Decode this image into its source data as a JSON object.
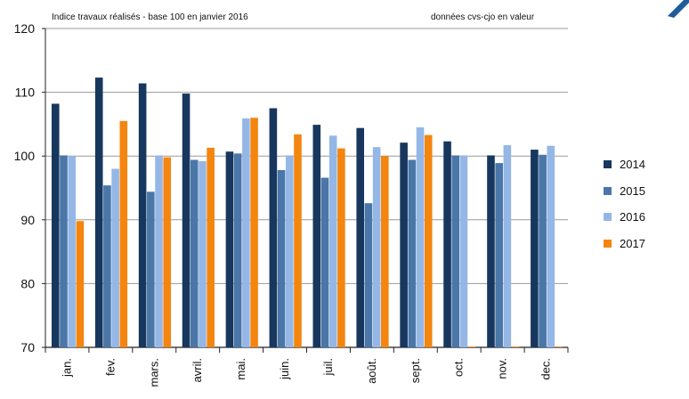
{
  "header": {
    "title": "Indice travaux réalisés - base 100 en janvier 2016",
    "subtitle": "données cvs-cjo en valeur"
  },
  "colors": {
    "2014": "#17375e",
    "2015": "#4a76a8",
    "2016": "#95b7e6",
    "2017": "#f4850f",
    "grid": "#9a9a9a",
    "axis": "#222222",
    "corner_mark": "#1f5c99"
  },
  "legend": {
    "position": "right",
    "items": [
      {
        "label": "2014",
        "color": "#17375e"
      },
      {
        "label": "2015",
        "color": "#4a76a8"
      },
      {
        "label": "2016",
        "color": "#95b7e6"
      },
      {
        "label": "2017",
        "color": "#f4850f"
      }
    ]
  },
  "chart_data": {
    "type": "bar",
    "title": "Indice travaux réalisés - base 100 en janvier 2016",
    "subtitle": "données cvs-cjo en valeur",
    "xlabel": "",
    "ylabel": "",
    "ylim": [
      70,
      120
    ],
    "yticks": [
      70,
      80,
      90,
      100,
      110,
      120
    ],
    "grid": true,
    "categories": [
      "jan.",
      "fev.",
      "mars.",
      "avril.",
      "mai.",
      "juin.",
      "juil.",
      "août.",
      "sept.",
      "oct.",
      "nov.",
      "dec."
    ],
    "series": [
      {
        "name": "2014",
        "values": [
          108.2,
          112.3,
          111.4,
          109.8,
          100.7,
          107.5,
          104.9,
          104.4,
          102.1,
          102.3,
          100.1,
          101.0
        ]
      },
      {
        "name": "2015",
        "values": [
          100.1,
          95.4,
          94.4,
          99.4,
          100.4,
          97.8,
          96.6,
          92.6,
          99.4,
          100.1,
          98.9,
          100.2
        ]
      },
      {
        "name": "2016",
        "values": [
          100.0,
          98.0,
          100.1,
          99.2,
          105.9,
          100.1,
          103.2,
          101.4,
          104.5,
          100.1,
          101.7,
          101.6
        ]
      },
      {
        "name": "2017",
        "values": [
          89.8,
          105.5,
          99.8,
          101.3,
          106.0,
          103.4,
          101.2,
          100.0,
          103.3,
          70.1,
          70.1,
          70.1
        ]
      }
    ]
  }
}
